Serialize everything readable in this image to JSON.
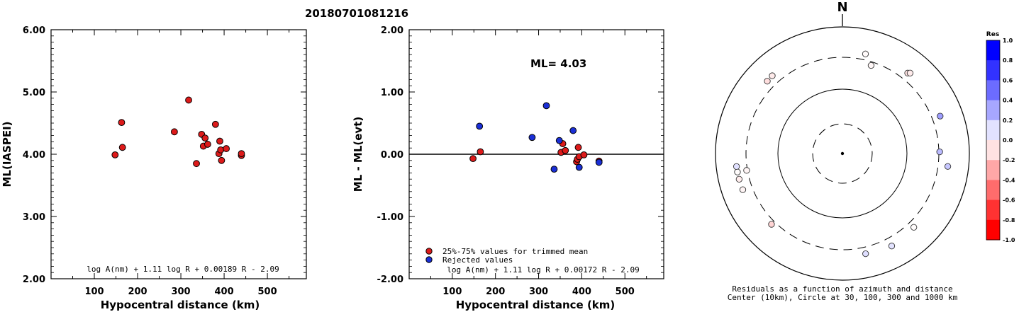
{
  "title": "20180701081216",
  "chart_data": [
    {
      "type": "scatter",
      "ylabel": "ML(IASPEI)",
      "xlabel": "Hypocentral distance (km)",
      "xlim": [
        0,
        590
      ],
      "ylim": [
        2.0,
        6.0
      ],
      "xticks": [
        "100",
        "200",
        "300",
        "400",
        "500"
      ],
      "yticks": [
        "2.00",
        "3.00",
        "4.00",
        "5.00",
        "6.00"
      ],
      "formula": "log A(nm) + 1.11 log R + 0.00189 R - 2.09",
      "color": "#dd1a1a",
      "points": [
        {
          "x": 148,
          "y": 3.99
        },
        {
          "x": 163,
          "y": 4.51
        },
        {
          "x": 165,
          "y": 4.11
        },
        {
          "x": 285,
          "y": 4.36
        },
        {
          "x": 318,
          "y": 4.87
        },
        {
          "x": 336,
          "y": 3.85
        },
        {
          "x": 348,
          "y": 4.32
        },
        {
          "x": 352,
          "y": 4.13
        },
        {
          "x": 356,
          "y": 4.26
        },
        {
          "x": 362,
          "y": 4.16
        },
        {
          "x": 380,
          "y": 4.48
        },
        {
          "x": 388,
          "y": 4.01
        },
        {
          "x": 390,
          "y": 4.21
        },
        {
          "x": 392,
          "y": 4.07
        },
        {
          "x": 394,
          "y": 3.9
        },
        {
          "x": 405,
          "y": 4.09
        },
        {
          "x": 440,
          "y": 3.98
        },
        {
          "x": 440,
          "y": 4.01
        }
      ]
    },
    {
      "type": "scatter",
      "ylabel": "ML - ML(evt)",
      "xlabel": "Hypocentral distance (km)",
      "xlim": [
        0,
        590
      ],
      "ylim": [
        -2.0,
        2.0
      ],
      "xticks": [
        "100",
        "200",
        "300",
        "400",
        "500"
      ],
      "yticks": [
        "-2.00",
        "-1.00",
        "0.00",
        "1.00",
        "2.00"
      ],
      "annotation": "ML= 4.03",
      "formula": "log A(nm) + 1.11 log R + 0.00172 R - 2.09",
      "legend": [
        {
          "label": "25%-75% values for trimmed mean",
          "color": "#dd1a1a"
        },
        {
          "label": "Rejected values",
          "color": "#1a2fd6"
        }
      ],
      "series": [
        {
          "color": "#dd1a1a",
          "points": [
            {
              "x": 148,
              "y": -0.07
            },
            {
              "x": 165,
              "y": 0.04
            },
            {
              "x": 352,
              "y": 0.03
            },
            {
              "x": 356,
              "y": 0.17
            },
            {
              "x": 362,
              "y": 0.06
            },
            {
              "x": 388,
              "y": -0.12
            },
            {
              "x": 390,
              "y": -0.08
            },
            {
              "x": 392,
              "y": 0.11
            },
            {
              "x": 394,
              "y": -0.04
            },
            {
              "x": 405,
              "y": -0.01
            },
            {
              "x": 440,
              "y": -0.11
            }
          ]
        },
        {
          "color": "#1a2fd6",
          "points": [
            {
              "x": 163,
              "y": 0.45
            },
            {
              "x": 285,
              "y": 0.27
            },
            {
              "x": 318,
              "y": 0.78
            },
            {
              "x": 336,
              "y": -0.24
            },
            {
              "x": 348,
              "y": 0.22
            },
            {
              "x": 380,
              "y": 0.38
            },
            {
              "x": 394,
              "y": -0.21
            },
            {
              "x": 440,
              "y": -0.13
            }
          ]
        }
      ]
    },
    {
      "type": "scatter",
      "north_label": "N",
      "caption_line1": "Residuals as a function of azimuth and distance",
      "caption_line2": "Center (10km), Circle at 30, 100, 300 and 1000 km",
      "colorbar_title": "Res",
      "colorbar_ticks": [
        "1.0",
        "0.8",
        "0.6",
        "0.4",
        "0.2",
        "0.0",
        "-0.2",
        "-0.4",
        "-0.6",
        "-0.8",
        "-1.0"
      ],
      "points": [
        {
          "azimuth": 13,
          "distance": 380,
          "residual": -0.02
        },
        {
          "azimuth": 18,
          "distance": 265,
          "residual": -0.03
        },
        {
          "azimuth": 39,
          "distance": 400,
          "residual": -0.11
        },
        {
          "azimuth": 40,
          "distance": 425,
          "residual": -0.08
        },
        {
          "azimuth": 69,
          "distance": 415,
          "residual": 0.38
        },
        {
          "azimuth": 89,
          "distance": 310,
          "residual": 0.27
        },
        {
          "azimuth": 97,
          "distance": 440,
          "residual": 0.22
        },
        {
          "azimuth": 136,
          "distance": 385,
          "residual": -0.01
        },
        {
          "azimuth": 152,
          "distance": 420,
          "residual": 0.11
        },
        {
          "azimuth": 167,
          "distance": 390,
          "residual": 0.13
        },
        {
          "azimuth": 225,
          "distance": 350,
          "residual": -0.17
        },
        {
          "azimuth": 260,
          "distance": 310,
          "residual": -0.04
        },
        {
          "azimuth": 250,
          "distance": 438,
          "residual": -0.04
        },
        {
          "azimuth": 256,
          "distance": 445,
          "residual": -0.07
        },
        {
          "azimuth": 260,
          "distance": 448,
          "residual": -0.01
        },
        {
          "azimuth": 263,
          "distance": 450,
          "residual": 0.12
        },
        {
          "azimuth": 314,
          "distance": 411,
          "residual": -0.13
        },
        {
          "azimuth": 318,
          "distance": 419,
          "residual": -0.08
        }
      ]
    }
  ]
}
